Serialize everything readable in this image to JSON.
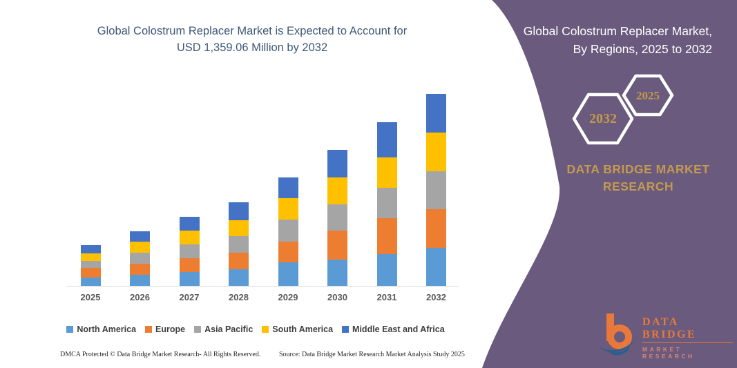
{
  "left_section": {
    "title_line1": "Global Colostrum Replacer Market is Expected to Account for",
    "title_line2": "USD 1,359.06 Million by 2032",
    "footer_dmca": "DMCA Protected © Data Bridge Market Research-  All Rights Reserved.",
    "footer_source": "Source: Data Bridge Market Research  Market Analysis Study 2025"
  },
  "chart_data": {
    "type": "bar",
    "stacked": true,
    "unit": "USD Million",
    "title": "Global Colostrum Replacer Market is Expected to Account for USD 1,359.06 Million by 2032",
    "categories": [
      "2025",
      "2026",
      "2027",
      "2028",
      "2029",
      "2030",
      "2031",
      "2032"
    ],
    "series": [
      {
        "name": "North America",
        "color": "#5B9BD5",
        "values": [
          61,
          78,
          98,
          118,
          165,
          184,
          224,
          271
        ]
      },
      {
        "name": "Europe",
        "color": "#ED7D31",
        "values": [
          64,
          80,
          96,
          117,
          148,
          208,
          257,
          274
        ]
      },
      {
        "name": "Asia Pacific",
        "color": "#A5A5A5",
        "values": [
          53,
          75,
          100,
          118,
          155,
          187,
          211,
          268
        ]
      },
      {
        "name": "South America",
        "color": "#FFC000",
        "values": [
          54,
          78,
          98,
          112,
          152,
          187,
          219,
          273
        ]
      },
      {
        "name": "Middle East and Africa",
        "color": "#4472C4",
        "values": [
          58,
          77,
          98,
          125,
          150,
          199,
          249,
          273.06
        ]
      }
    ],
    "totals": [
      290,
      388,
      490,
      590,
      770,
      965,
      1160,
      1359.06
    ],
    "ylim": [
      0,
      1400
    ],
    "gridlines": false,
    "axis_line_color": "#d9d9d9",
    "legend_position": "bottom"
  },
  "right_panel": {
    "title_line1": "Global Colostrum Replacer Market,",
    "title_line2": "By Regions, 2025 to 2032",
    "hexagons": [
      {
        "label": "2032"
      },
      {
        "label": "2025"
      }
    ],
    "brand_line1": "DATA BRIDGE MARKET",
    "brand_line2": "RESEARCH",
    "colors": {
      "panel": "#6A5A7D",
      "gold": "#C49A4F",
      "hex_border": "#FFFFFF",
      "title_text": "#FFFFFF"
    }
  },
  "logo": {
    "line1": "DATA BRIDGE",
    "line2": "MARKET RESEARCH",
    "colors": {
      "orange": "#E8793A",
      "blue": "#2A5E8E",
      "salmon": "#DB8474"
    }
  }
}
